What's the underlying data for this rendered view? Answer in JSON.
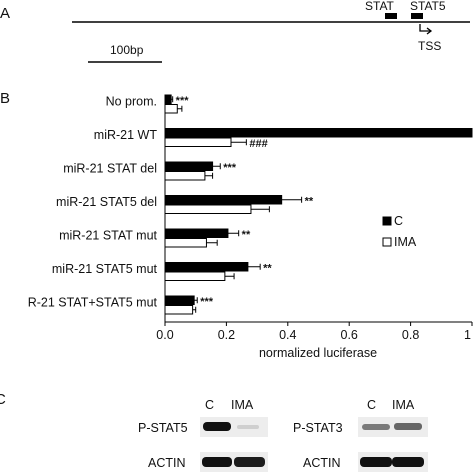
{
  "panels": {
    "a": "A",
    "b": "B",
    "c": "C"
  },
  "promoter_map": {
    "stat_label": "STAT",
    "stat5_label": "STAT5",
    "tss_label": "TSS",
    "scale_label": "100bp"
  },
  "chart_data": {
    "type": "bar",
    "orientation": "horizontal",
    "categories": [
      "No prom.",
      "miR-21 WT",
      "miR-21 STAT del",
      "miR-21 STAT5 del",
      "miR-21 STAT mut",
      "miR-21 STAT5 mut",
      "R-21 STAT+STAT5 mut"
    ],
    "series": [
      {
        "name": "C",
        "color": "#000000",
        "values": [
          0.02,
          1.0,
          0.155,
          0.38,
          0.205,
          0.27,
          0.095
        ],
        "errors": [
          0.005,
          0.0,
          0.025,
          0.065,
          0.035,
          0.04,
          0.01
        ],
        "significance": [
          "***",
          "",
          "***",
          "**",
          "**",
          "**",
          "***"
        ]
      },
      {
        "name": "IMA",
        "color": "#ffffff",
        "values": [
          0.04,
          0.215,
          0.13,
          0.28,
          0.135,
          0.195,
          0.09
        ],
        "errors": [
          0.015,
          0.05,
          0.025,
          0.06,
          0.035,
          0.03,
          0.01
        ],
        "significance": [
          "",
          "###",
          "",
          "",
          "",
          "",
          ""
        ]
      }
    ],
    "xlabel": "normalized luciferase",
    "xlim": [
      0,
      1
    ],
    "xticks": [
      "0.0",
      "0.2",
      "0.4",
      "0.6",
      "0.8",
      "1"
    ],
    "legend_position": "right",
    "grid": false
  },
  "western_blot": {
    "left": {
      "lane_labels": [
        "C",
        "IMA"
      ],
      "rows": [
        "P-STAT5",
        "ACTIN"
      ],
      "band_intensity": {
        "P-STAT5": [
          0.95,
          0.12
        ],
        "ACTIN": [
          0.95,
          0.9
        ]
      }
    },
    "right": {
      "lane_labels": [
        "C",
        "IMA"
      ],
      "rows": [
        "P-STAT3",
        "ACTIN"
      ],
      "band_intensity": {
        "P-STAT3": [
          0.55,
          0.6
        ],
        "ACTIN": [
          0.95,
          0.95
        ]
      }
    }
  }
}
